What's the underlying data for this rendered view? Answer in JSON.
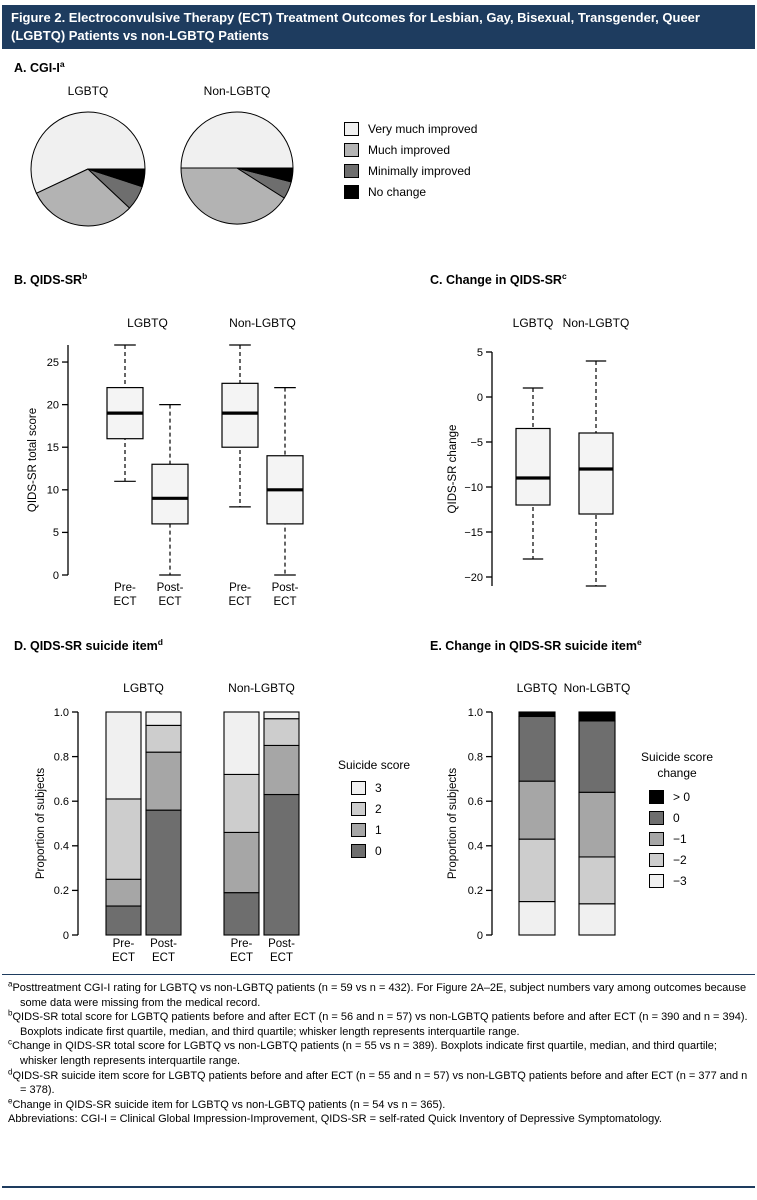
{
  "colors": {
    "navy_bar": "#1e3c5f"
  },
  "figure": {
    "title": "Figure 2. Electroconvulsive Therapy (ECT) Treatment Outcomes for Lesbian, Gay, Bisexual, Transgender, Queer (LGBTQ) Patients vs non-LGBTQ Patients"
  },
  "panels": {
    "a": {
      "title": "A. CGI-I",
      "sup": "a"
    },
    "b": {
      "title": "B. QIDS-SR",
      "sup": "b"
    },
    "c": {
      "title": "C. Change in QIDS-SR",
      "sup": "c"
    },
    "d": {
      "title": "D. QIDS-SR suicide item",
      "sup": "d"
    },
    "e": {
      "title": "E. Change in QIDS-SR suicide item",
      "sup": "e"
    }
  },
  "chart_data": [
    {
      "id": "A",
      "type": "pie",
      "title": "A. CGI-I",
      "legend_entries": [
        "Very much improved",
        "Much improved",
        "Minimally improved",
        "No change"
      ],
      "colors": [
        "#f0f0f0",
        "#b3b3b3",
        "#6e6e6e",
        "#000000"
      ],
      "pies": [
        {
          "label": "LGBTQ",
          "values_pct": [
            57,
            31,
            7,
            5
          ]
        },
        {
          "label": "Non-LGBTQ",
          "values_pct": [
            50,
            41,
            5,
            4
          ]
        }
      ]
    },
    {
      "id": "B",
      "type": "boxplot",
      "title": "B. QIDS-SR",
      "ylabel": "QIDS-SR total score",
      "ylim": [
        0,
        27
      ],
      "yticks": [
        "0",
        "5",
        "10",
        "15",
        "20",
        "25"
      ],
      "ytick_values": [
        0,
        5,
        10,
        15,
        20,
        25
      ],
      "group_labels": [
        "LGBTQ",
        "Non-LGBTQ"
      ],
      "x_labels": [
        [
          "Pre-",
          "ECT"
        ],
        [
          "Post-",
          "ECT"
        ],
        [
          "Pre-",
          "ECT"
        ],
        [
          "Post-",
          "ECT"
        ]
      ],
      "boxes": [
        {
          "group": "LGBTQ",
          "condition": "Pre-ECT",
          "whisker_low": 11,
          "q1": 16,
          "median": 19,
          "q3": 22,
          "whisker_high": 27
        },
        {
          "group": "LGBTQ",
          "condition": "Post-ECT",
          "whisker_low": 0,
          "q1": 6,
          "median": 9,
          "q3": 13,
          "whisker_high": 20
        },
        {
          "group": "Non-LGBTQ",
          "condition": "Pre-ECT",
          "whisker_low": 8,
          "q1": 15,
          "median": 19,
          "q3": 22.5,
          "whisker_high": 27
        },
        {
          "group": "Non-LGBTQ",
          "condition": "Post-ECT",
          "whisker_low": 0,
          "q1": 6,
          "median": 10,
          "q3": 14,
          "whisker_high": 22
        }
      ]
    },
    {
      "id": "C",
      "type": "boxplot",
      "title": "C. Change in QIDS-SR",
      "ylabel": "QIDS-SR change",
      "ylim": [
        -21,
        5
      ],
      "yticks": [
        "5",
        "0",
        "−5",
        "−10",
        "−15",
        "−20"
      ],
      "ytick_values": [
        5,
        0,
        -5,
        -10,
        -15,
        -20
      ],
      "group_labels": [
        "LGBTQ",
        "Non-LGBTQ"
      ],
      "boxes": [
        {
          "group": "LGBTQ",
          "whisker_low": -18,
          "q1": -12,
          "median": -9,
          "q3": -3.5,
          "whisker_high": 1
        },
        {
          "group": "Non-LGBTQ",
          "whisker_low": -21,
          "q1": -13,
          "median": -8,
          "q3": -4,
          "whisker_high": 4
        }
      ]
    },
    {
      "id": "D",
      "type": "bar",
      "stacked": true,
      "title": "D. QIDS-SR suicide item",
      "ylabel": "Proportion of subjects",
      "ylim": [
        0,
        1
      ],
      "yticks": [
        "0",
        "0.2",
        "0.4",
        "0.6",
        "0.8",
        "1.0"
      ],
      "ytick_values": [
        0,
        0.2,
        0.4,
        0.6,
        0.8,
        1.0
      ],
      "group_labels": [
        "LGBTQ",
        "Non-LGBTQ"
      ],
      "x_labels": [
        [
          "Pre-",
          "ECT"
        ],
        [
          "Post-",
          "ECT"
        ],
        [
          "Pre-",
          "ECT"
        ],
        [
          "Post-",
          "ECT"
        ]
      ],
      "legend_title": "Suicide score",
      "legend_entries": [
        "3",
        "2",
        "1",
        "0"
      ],
      "legend_colors": [
        "#f0f0f0",
        "#cdcdcd",
        "#a6a6a6",
        "#6e6e6e"
      ],
      "series_order_bottom_to_top": [
        "0",
        "1",
        "2",
        "3"
      ],
      "bar_colors_bottom_to_top": [
        "#6e6e6e",
        "#a6a6a6",
        "#cdcdcd",
        "#f0f0f0"
      ],
      "bars": [
        {
          "group": "LGBTQ",
          "condition": "Pre-ECT",
          "values": [
            0.13,
            0.12,
            0.36,
            0.39
          ]
        },
        {
          "group": "LGBTQ",
          "condition": "Post-ECT",
          "values": [
            0.56,
            0.26,
            0.12,
            0.06
          ]
        },
        {
          "group": "Non-LGBTQ",
          "condition": "Pre-ECT",
          "values": [
            0.19,
            0.27,
            0.26,
            0.28
          ]
        },
        {
          "group": "Non-LGBTQ",
          "condition": "Post-ECT",
          "values": [
            0.63,
            0.22,
            0.12,
            0.03
          ]
        }
      ]
    },
    {
      "id": "E",
      "type": "bar",
      "stacked": true,
      "title": "E. Change in QIDS-SR suicide item",
      "ylabel": "Proportion of subjects",
      "ylim": [
        0,
        1
      ],
      "yticks": [
        "0",
        "0.2",
        "0.4",
        "0.6",
        "0.8",
        "1.0"
      ],
      "ytick_values": [
        0,
        0.2,
        0.4,
        0.6,
        0.8,
        1.0
      ],
      "group_labels": [
        "LGBTQ",
        "Non-LGBTQ"
      ],
      "legend_title": "Suicide score change",
      "legend_entries": [
        "> 0",
        "0",
        "−1",
        "−2",
        "−3"
      ],
      "legend_colors": [
        "#000000",
        "#6e6e6e",
        "#a6a6a6",
        "#cdcdcd",
        "#f0f0f0"
      ],
      "series_order_bottom_to_top": [
        "−3",
        "−2",
        "−1",
        "0",
        "> 0"
      ],
      "bar_colors_bottom_to_top": [
        "#f0f0f0",
        "#cdcdcd",
        "#a6a6a6",
        "#6e6e6e",
        "#000000"
      ],
      "bars": [
        {
          "group": "LGBTQ",
          "values": [
            0.15,
            0.28,
            0.26,
            0.29,
            0.02
          ]
        },
        {
          "group": "Non-LGBTQ",
          "values": [
            0.14,
            0.21,
            0.29,
            0.32,
            0.04
          ]
        }
      ]
    }
  ],
  "footnotes": [
    {
      "sup": "a",
      "text": "Posttreatment CGI-I rating for LGBTQ vs non-LGBTQ patients (n = 59 vs n = 432). For Figure 2A–2E, subject numbers vary among outcomes because some data were missing from the medical record."
    },
    {
      "sup": "b",
      "text": "QIDS-SR total score for LGBTQ patients before and after ECT (n = 56 and n = 57) vs non-LGBTQ patients before and after ECT (n = 390 and n = 394). Boxplots indicate first quartile, median, and third quartile; whisker length represents interquartile range."
    },
    {
      "sup": "c",
      "text": "Change in QIDS-SR total score for LGBTQ vs non-LGBTQ patients (n = 55 vs n = 389). Boxplots indicate first quartile, median, and third quartile; whisker length represents interquartile range."
    },
    {
      "sup": "d",
      "text": "QIDS-SR suicide item score for LGBTQ patients before and after ECT (n = 55 and n = 57) vs non-LGBTQ patients before and after ECT (n = 377 and n = 378)."
    },
    {
      "sup": "e",
      "text": "Change in QIDS-SR suicide item for LGBTQ vs non-LGBTQ patients (n = 54 vs n = 365)."
    },
    {
      "sup": "",
      "text": "Abbreviations: CGI-I = Clinical Global Impression-Improvement, QIDS-SR = self-rated Quick Inventory of Depressive Symptomatology."
    }
  ]
}
